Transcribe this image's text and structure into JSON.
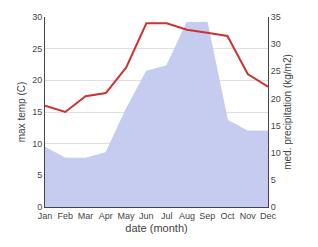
{
  "chart_data": {
    "type": "line",
    "categories": [
      "Jan",
      "Feb",
      "Mar",
      "Apr",
      "May",
      "Jun",
      "Jul",
      "Aug",
      "Sep",
      "Oct",
      "Nov",
      "Dec"
    ],
    "xlabel": "date (month)",
    "ylabel": "max temp (C)",
    "y2label": "med. precipitation (kg/m2)",
    "series": [
      {
        "type": "area",
        "axis": "y2",
        "color": "#c5ccf0",
        "values": [
          11,
          9,
          9,
          10,
          18,
          25,
          26,
          34,
          34,
          16,
          14,
          14
        ]
      },
      {
        "type": "line",
        "color": "#cc3333",
        "values": [
          16,
          15,
          17.5,
          18,
          22,
          29,
          29,
          28,
          27.5,
          27,
          21,
          19
        ]
      }
    ],
    "ylim": [
      0,
      30
    ],
    "yticks": [
      0,
      5,
      10,
      15,
      20,
      25,
      30
    ],
    "y2lim": [
      0,
      35
    ],
    "y2ticks": [
      0,
      5,
      10,
      15,
      20,
      25,
      30,
      35
    ],
    "grid": true
  }
}
